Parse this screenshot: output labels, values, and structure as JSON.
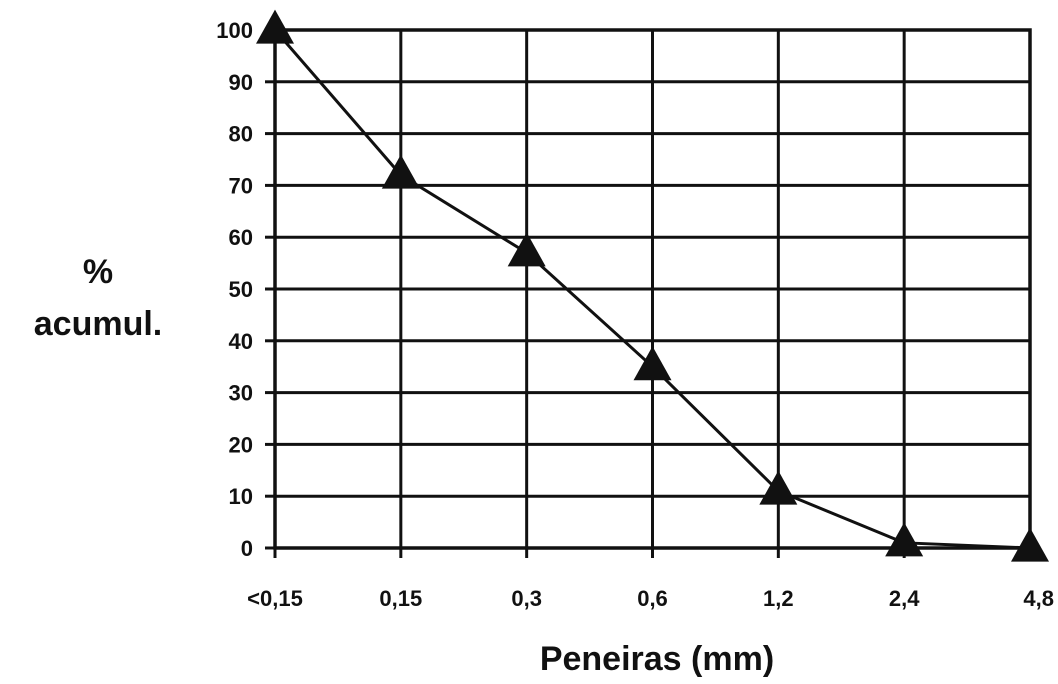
{
  "chart_data": {
    "type": "line",
    "title": "",
    "xlabel": "Peneiras (mm)",
    "ylabel_lines": [
      "%",
      "acumul."
    ],
    "categories": [
      "<0,15",
      "0,15",
      "0,3",
      "0,6",
      "1,2",
      "2,4",
      "4,8"
    ],
    "y_ticks": [
      0,
      10,
      20,
      30,
      40,
      50,
      60,
      70,
      80,
      90,
      100
    ],
    "ylim": [
      0,
      100
    ],
    "grid": true,
    "series": [
      {
        "values": [
          100,
          72,
          57,
          35,
          11,
          1,
          0
        ],
        "marker": "triangle",
        "color": "#111111"
      }
    ]
  }
}
